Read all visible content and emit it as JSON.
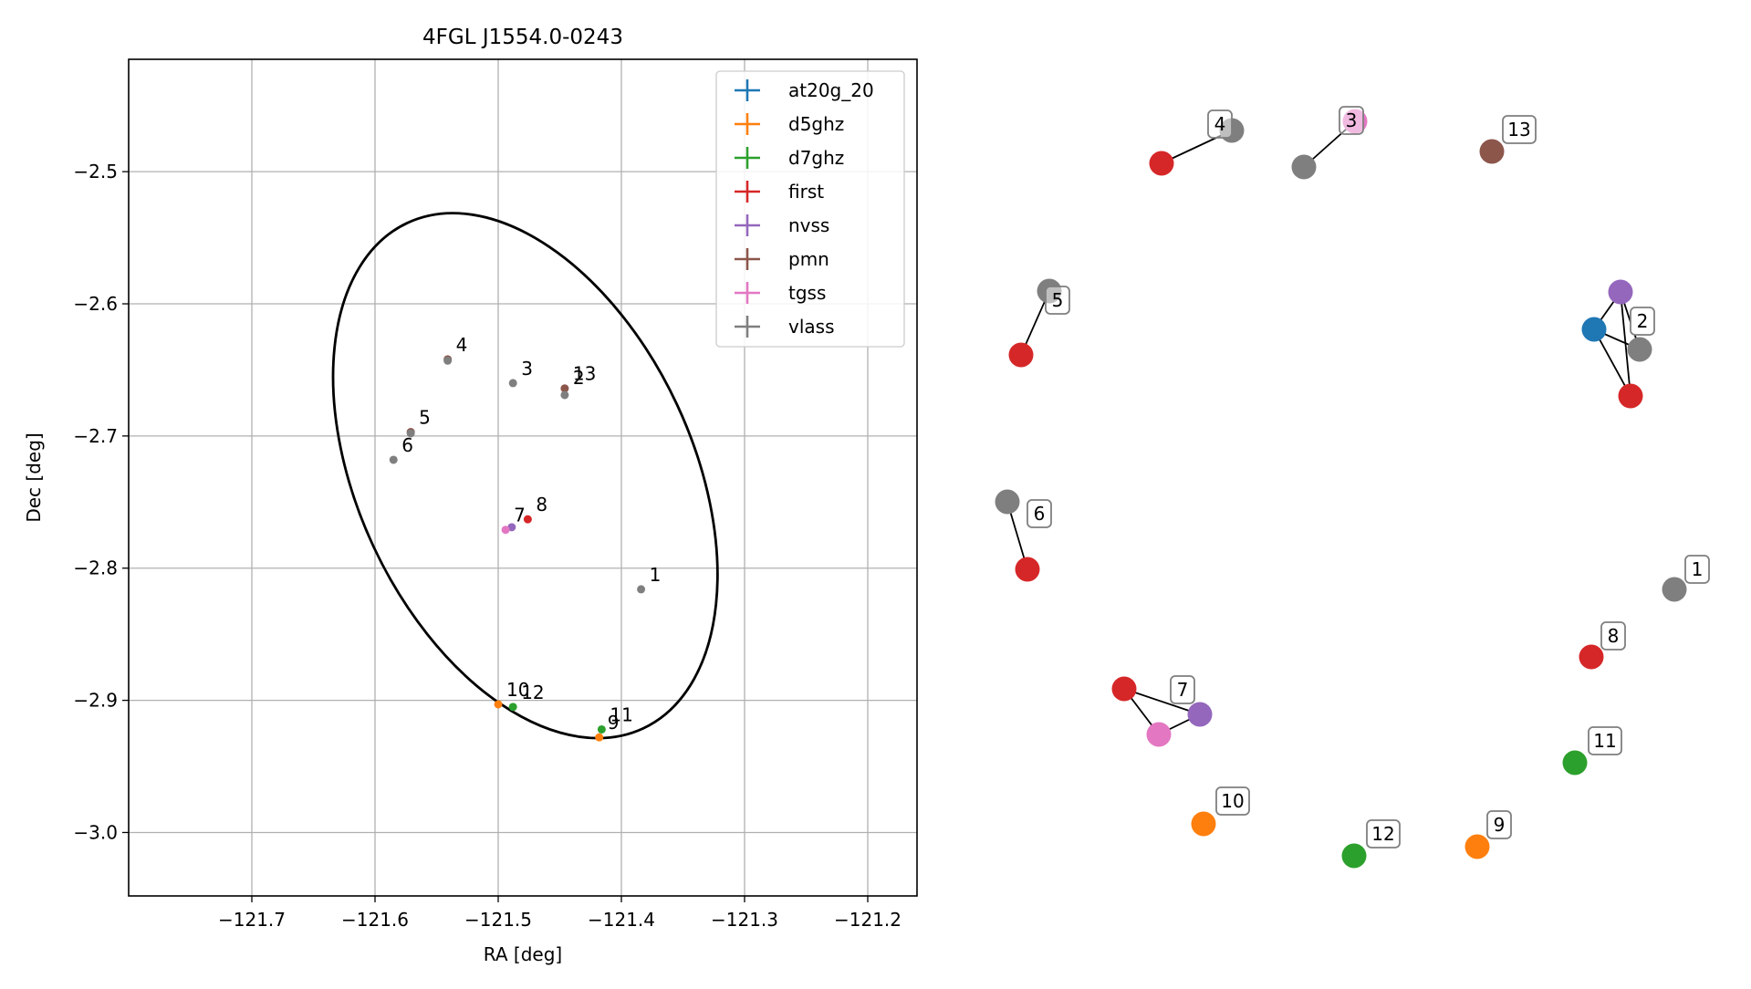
{
  "chart_data": [
    {
      "type": "scatter",
      "title": "4FGL J1554.0-0243",
      "xlabel": "RA [deg]",
      "ylabel": "Dec [deg]",
      "xlim": [
        -121.8,
        -121.16
      ],
      "ylim": [
        -3.048,
        -2.415
      ],
      "xticks": [
        -121.7,
        -121.6,
        -121.5,
        -121.4,
        -121.3,
        -121.2
      ],
      "xtick_labels": [
        "−121.7",
        "−121.6",
        "−121.5",
        "−121.4",
        "−121.3",
        "−121.2"
      ],
      "yticks": [
        -2.5,
        -2.6,
        -2.7,
        -2.8,
        -2.9,
        -3.0
      ],
      "ytick_labels": [
        "−2.5",
        "−2.6",
        "−2.7",
        "−2.8",
        "−2.9",
        "−3.0"
      ],
      "grid": true,
      "legend_position": "top-right",
      "series": [
        {
          "name": "at20g_20",
          "color": "#1f77b4"
        },
        {
          "name": "d5ghz",
          "color": "#ff7f0e"
        },
        {
          "name": "d7ghz",
          "color": "#2ca02c"
        },
        {
          "name": "first",
          "color": "#d62728"
        },
        {
          "name": "nvss",
          "color": "#9467bd"
        },
        {
          "name": "pmn",
          "color": "#8c564b"
        },
        {
          "name": "tgss",
          "color": "#e377c2"
        },
        {
          "name": "vlass",
          "color": "#7f7f7f"
        }
      ],
      "ellipse": {
        "center": [
          -121.478,
          -2.73
        ],
        "semi_axes_deg": [
          0.136,
          0.211
        ],
        "angle_deg": 25
      },
      "points": [
        {
          "x": -121.384,
          "y": -2.816,
          "series": "vlass"
        },
        {
          "x": -121.446,
          "y": -2.664,
          "series": "pmn"
        },
        {
          "x": -121.446,
          "y": -2.669,
          "series": "vlass"
        },
        {
          "x": -121.488,
          "y": -2.66,
          "series": "vlass"
        },
        {
          "x": -121.541,
          "y": -2.642,
          "series": "pmn"
        },
        {
          "x": -121.541,
          "y": -2.643,
          "series": "vlass"
        },
        {
          "x": -121.571,
          "y": -2.697,
          "series": "pmn"
        },
        {
          "x": -121.571,
          "y": -2.698,
          "series": "vlass"
        },
        {
          "x": -121.585,
          "y": -2.718,
          "series": "vlass"
        },
        {
          "x": -121.489,
          "y": -2.769,
          "series": "nvss"
        },
        {
          "x": -121.494,
          "y": -2.771,
          "series": "tgss"
        },
        {
          "x": -121.476,
          "y": -2.763,
          "series": "first"
        },
        {
          "x": -121.5,
          "y": -2.903,
          "series": "d5ghz"
        },
        {
          "x": -121.488,
          "y": -2.905,
          "series": "d7ghz"
        },
        {
          "x": -121.416,
          "y": -2.922,
          "series": "d7ghz"
        },
        {
          "x": -121.418,
          "y": -2.928,
          "series": "d5ghz"
        }
      ],
      "point_labels": [
        {
          "text": "1",
          "x": -121.384,
          "y": -2.816
        },
        {
          "text": "2",
          "x": -121.446,
          "y": -2.667
        },
        {
          "text": "13",
          "x": -121.446,
          "y": -2.664
        },
        {
          "text": "3",
          "x": -121.488,
          "y": -2.66
        },
        {
          "text": "4",
          "x": -121.541,
          "y": -2.642
        },
        {
          "text": "5",
          "x": -121.571,
          "y": -2.697
        },
        {
          "text": "6",
          "x": -121.585,
          "y": -2.718
        },
        {
          "text": "7",
          "x": -121.494,
          "y": -2.771
        },
        {
          "text": "8",
          "x": -121.476,
          "y": -2.763
        },
        {
          "text": "10",
          "x": -121.5,
          "y": -2.903
        },
        {
          "text": "12",
          "x": -121.488,
          "y": -2.905
        },
        {
          "text": "11",
          "x": -121.416,
          "y": -2.922
        },
        {
          "text": "9",
          "x": -121.418,
          "y": -2.928
        }
      ]
    },
    {
      "type": "network",
      "groups": [
        {
          "label": "1",
          "nodes": [
            {
              "series": "vlass"
            }
          ]
        },
        {
          "label": "2",
          "nodes": [
            {
              "series": "nvss"
            },
            {
              "series": "at20g_20"
            },
            {
              "series": "vlass"
            },
            {
              "series": "first"
            }
          ],
          "edges": [
            [
              0,
              1
            ],
            [
              0,
              2
            ],
            [
              0,
              3
            ],
            [
              1,
              2
            ],
            [
              1,
              3
            ]
          ]
        },
        {
          "label": "3",
          "nodes": [
            {
              "series": "vlass"
            },
            {
              "series": "tgss"
            }
          ],
          "edges": [
            [
              0,
              1
            ]
          ]
        },
        {
          "label": "4",
          "nodes": [
            {
              "series": "first"
            },
            {
              "series": "vlass"
            }
          ],
          "edges": [
            [
              0,
              1
            ]
          ]
        },
        {
          "label": "5",
          "nodes": [
            {
              "series": "first"
            },
            {
              "series": "vlass"
            }
          ],
          "edges": [
            [
              0,
              1
            ]
          ]
        },
        {
          "label": "6",
          "nodes": [
            {
              "series": "vlass"
            },
            {
              "series": "first"
            }
          ],
          "edges": [
            [
              0,
              1
            ]
          ]
        },
        {
          "label": "7",
          "nodes": [
            {
              "series": "first"
            },
            {
              "series": "nvss"
            },
            {
              "series": "tgss"
            }
          ],
          "edges": [
            [
              0,
              1
            ],
            [
              0,
              2
            ],
            [
              1,
              2
            ]
          ]
        },
        {
          "label": "8",
          "nodes": [
            {
              "series": "first"
            }
          ]
        },
        {
          "label": "9",
          "nodes": [
            {
              "series": "d5ghz"
            }
          ]
        },
        {
          "label": "10",
          "nodes": [
            {
              "series": "d5ghz"
            }
          ]
        },
        {
          "label": "11",
          "nodes": [
            {
              "series": "d7ghz"
            }
          ]
        },
        {
          "label": "12",
          "nodes": [
            {
              "series": "d7ghz"
            }
          ]
        },
        {
          "label": "13",
          "nodes": [
            {
              "series": "pmn"
            }
          ]
        }
      ]
    }
  ]
}
